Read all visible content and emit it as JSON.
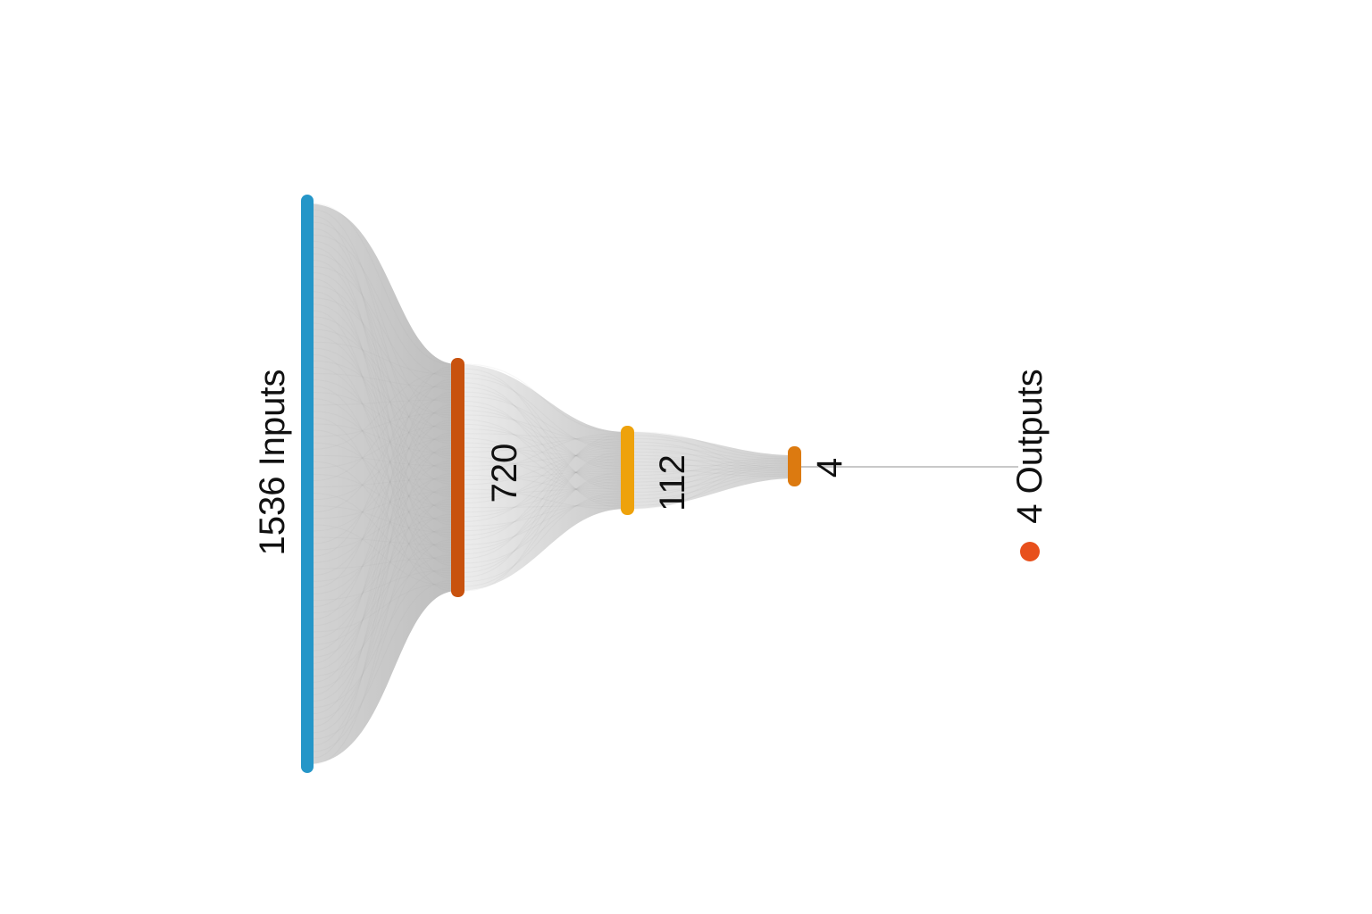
{
  "diagram": {
    "type": "neural-network-funnel",
    "input_label": "1536 Inputs",
    "output_label": "4 Outputs",
    "layers": [
      {
        "label": "",
        "size": 1536,
        "color": "#2596c8"
      },
      {
        "label": "720",
        "size": 720,
        "color": "#c8520e"
      },
      {
        "label": "112",
        "size": 112,
        "color": "#eea20c"
      },
      {
        "label": "4",
        "size": 4,
        "color": "#dc7a10"
      }
    ],
    "connection_color": "#a9a9a9",
    "output_marker_color": "#e8501c"
  }
}
